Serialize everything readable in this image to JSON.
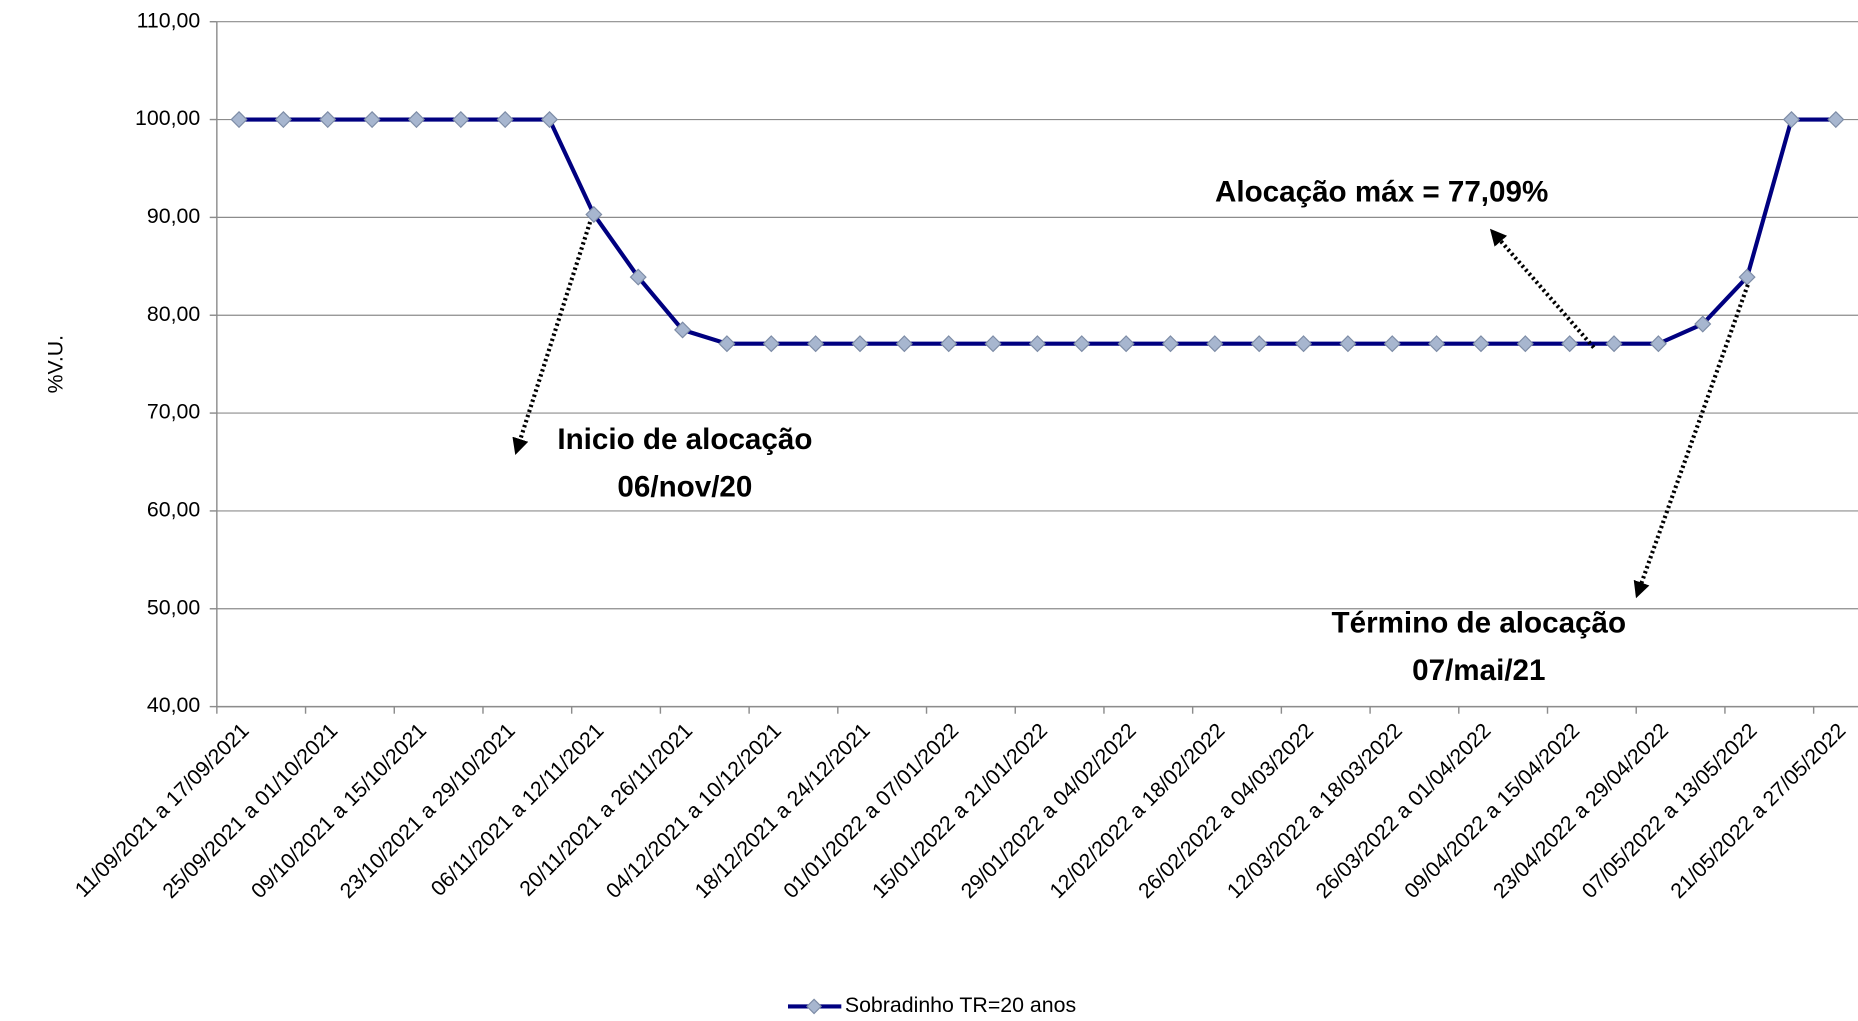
{
  "chart_data": {
    "type": "line",
    "y_label": "%V.U.",
    "categories": [
      "11/09/2021 a 17/09/2021",
      null,
      "25/09/2021 a 01/10/2021",
      null,
      "09/10/2021 a 15/10/2021",
      null,
      "23/10/2021 a 29/10/2021",
      null,
      "06/11/2021 a 12/11/2021",
      null,
      "20/11/2021 a 26/11/2021",
      null,
      "04/12/2021 a 10/12/2021",
      null,
      "18/12/2021 a 24/12/2021",
      null,
      "01/01/2022 a 07/01/2022",
      null,
      "15/01/2022 a 21/01/2022",
      null,
      "29/01/2022 a 04/02/2022",
      null,
      "12/02/2022 a 18/02/2022",
      null,
      "26/02/2022 a 04/03/2022",
      null,
      "12/03/2022 a 18/03/2022",
      null,
      "26/03/2022 a 01/04/2022",
      null,
      "09/04/2022 a 15/04/2022",
      null,
      "23/04/2022 a 29/04/2022",
      null,
      "07/05/2022 a 13/05/2022",
      null,
      "21/05/2022 a 27/05/2022"
    ],
    "series": [
      {
        "name": "Sobradinho TR=20 anos",
        "color": "#000080",
        "marker_color": "#a7b6cf",
        "values": [
          100,
          100,
          100,
          100,
          100,
          100,
          100,
          100,
          90.3,
          83.9,
          78.5,
          77.09,
          77.09,
          77.09,
          77.09,
          77.09,
          77.09,
          77.09,
          77.09,
          77.09,
          77.09,
          77.09,
          77.09,
          77.09,
          77.09,
          77.09,
          77.09,
          77.09,
          77.09,
          77.09,
          77.09,
          77.09,
          77.09,
          79.1,
          83.9,
          100,
          100
        ]
      }
    ],
    "ylim": [
      40,
      110
    ],
    "yticks": [
      {
        "value": 40,
        "label": "40,00"
      },
      {
        "value": 50,
        "label": "50,00"
      },
      {
        "value": 60,
        "label": "60,00"
      },
      {
        "value": 70,
        "label": "70,00"
      },
      {
        "value": 80,
        "label": "80,00"
      },
      {
        "value": 90,
        "label": "90,00"
      },
      {
        "value": 100,
        "label": "100,00"
      },
      {
        "value": 110,
        "label": "110,00"
      }
    ],
    "grid": true,
    "annotations": [
      "Alocação máx = 77,09%",
      "Inicio de alocação",
      "06/nov/20",
      "Término de alocação",
      "07/mai/21"
    ]
  }
}
